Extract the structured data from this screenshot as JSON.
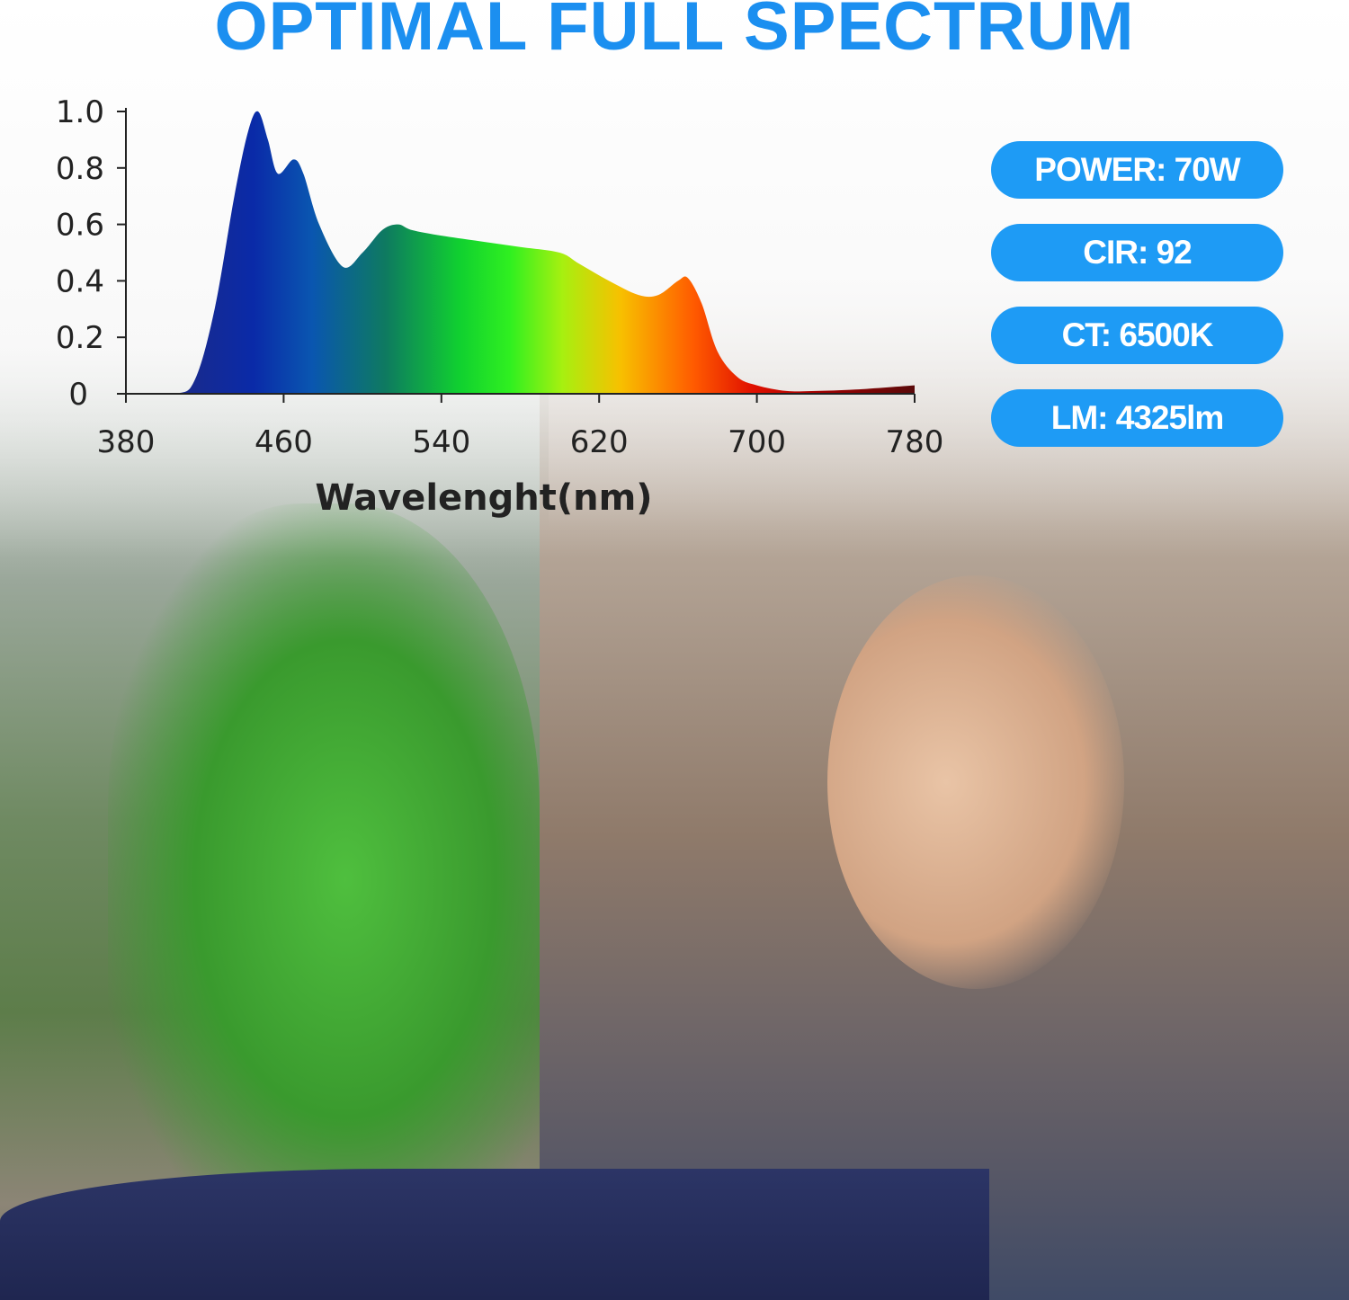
{
  "title": "OPTIMAL FULL SPECTRUM",
  "badges": [
    "POWER: 70W",
    "CIR: 92",
    "CT: 6500K",
    "LM: 4325lm"
  ],
  "colors": {
    "title": "#1b8ff0",
    "badge": "#1e9bf5"
  },
  "chart_data": {
    "type": "area",
    "title": "",
    "xlabel": "Wavelenght(nm)",
    "ylabel": "",
    "xlim": [
      380,
      780
    ],
    "ylim": [
      0,
      1.0
    ],
    "xticks": [
      "380",
      "460",
      "540",
      "620",
      "700",
      "780"
    ],
    "yticks": [
      "1.0",
      "0.8",
      "0.6",
      "0.4",
      "0.2",
      "0"
    ],
    "grid": false,
    "fill": "wavelength rainbow gradient",
    "x": [
      380,
      405,
      415,
      425,
      435,
      442,
      447,
      452,
      457,
      465,
      470,
      478,
      490,
      500,
      510,
      518,
      525,
      540,
      560,
      580,
      600,
      610,
      625,
      640,
      650,
      660,
      665,
      672,
      680,
      690,
      700,
      715,
      730,
      750,
      780
    ],
    "y": [
      0,
      0,
      0.05,
      0.3,
      0.7,
      0.93,
      1.0,
      0.9,
      0.78,
      0.83,
      0.78,
      0.6,
      0.45,
      0.5,
      0.58,
      0.6,
      0.58,
      0.56,
      0.54,
      0.52,
      0.5,
      0.46,
      0.4,
      0.35,
      0.35,
      0.4,
      0.41,
      0.32,
      0.15,
      0.06,
      0.03,
      0.01,
      0.01,
      0.015,
      0.03
    ]
  }
}
